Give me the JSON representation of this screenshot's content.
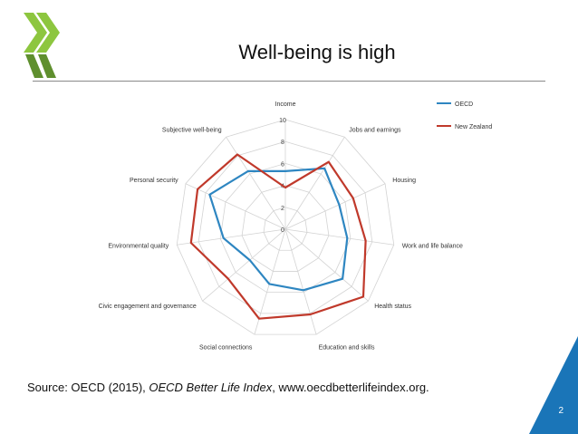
{
  "slide": {
    "title": "Well-being is high",
    "source_prefix": "Source: OECD (2015), ",
    "source_italic": "OECD Better Life Index",
    "source_suffix": ", www.oecdbetterlifeindex.org.",
    "page_number": "2",
    "accent_color": "#1a75b8",
    "logo_color": "#8dc63f",
    "logo_icon": "oecd-chevron-logo"
  },
  "chart_data": {
    "type": "radar",
    "title": "",
    "axes": [
      "Income",
      "Jobs and earnings",
      "Housing",
      "Work and life balance",
      "Health status",
      "Education and skills",
      "Social connections",
      "Civic engagement and governance",
      "Environmental quality",
      "Personal security",
      "Subjective well-being"
    ],
    "rlim": [
      0,
      10
    ],
    "ticks": [
      "0",
      "2",
      "4",
      "6",
      "8",
      "10"
    ],
    "tick_values": [
      0,
      2,
      4,
      6,
      8,
      10
    ],
    "grid": true,
    "legend_position": "top-right",
    "series": [
      {
        "name": "OECD",
        "color": "#2e86c1",
        "values": [
          5.3,
          6.6,
          5.4,
          5.7,
          6.9,
          5.8,
          5.2,
          4.3,
          5.7,
          7.6,
          6.3
        ]
      },
      {
        "name": "New Zealand",
        "color": "#c0392b",
        "values": [
          3.8,
          7.3,
          6.8,
          7.4,
          9.4,
          8.1,
          8.5,
          6.9,
          8.7,
          8.8,
          8.1
        ]
      }
    ]
  }
}
